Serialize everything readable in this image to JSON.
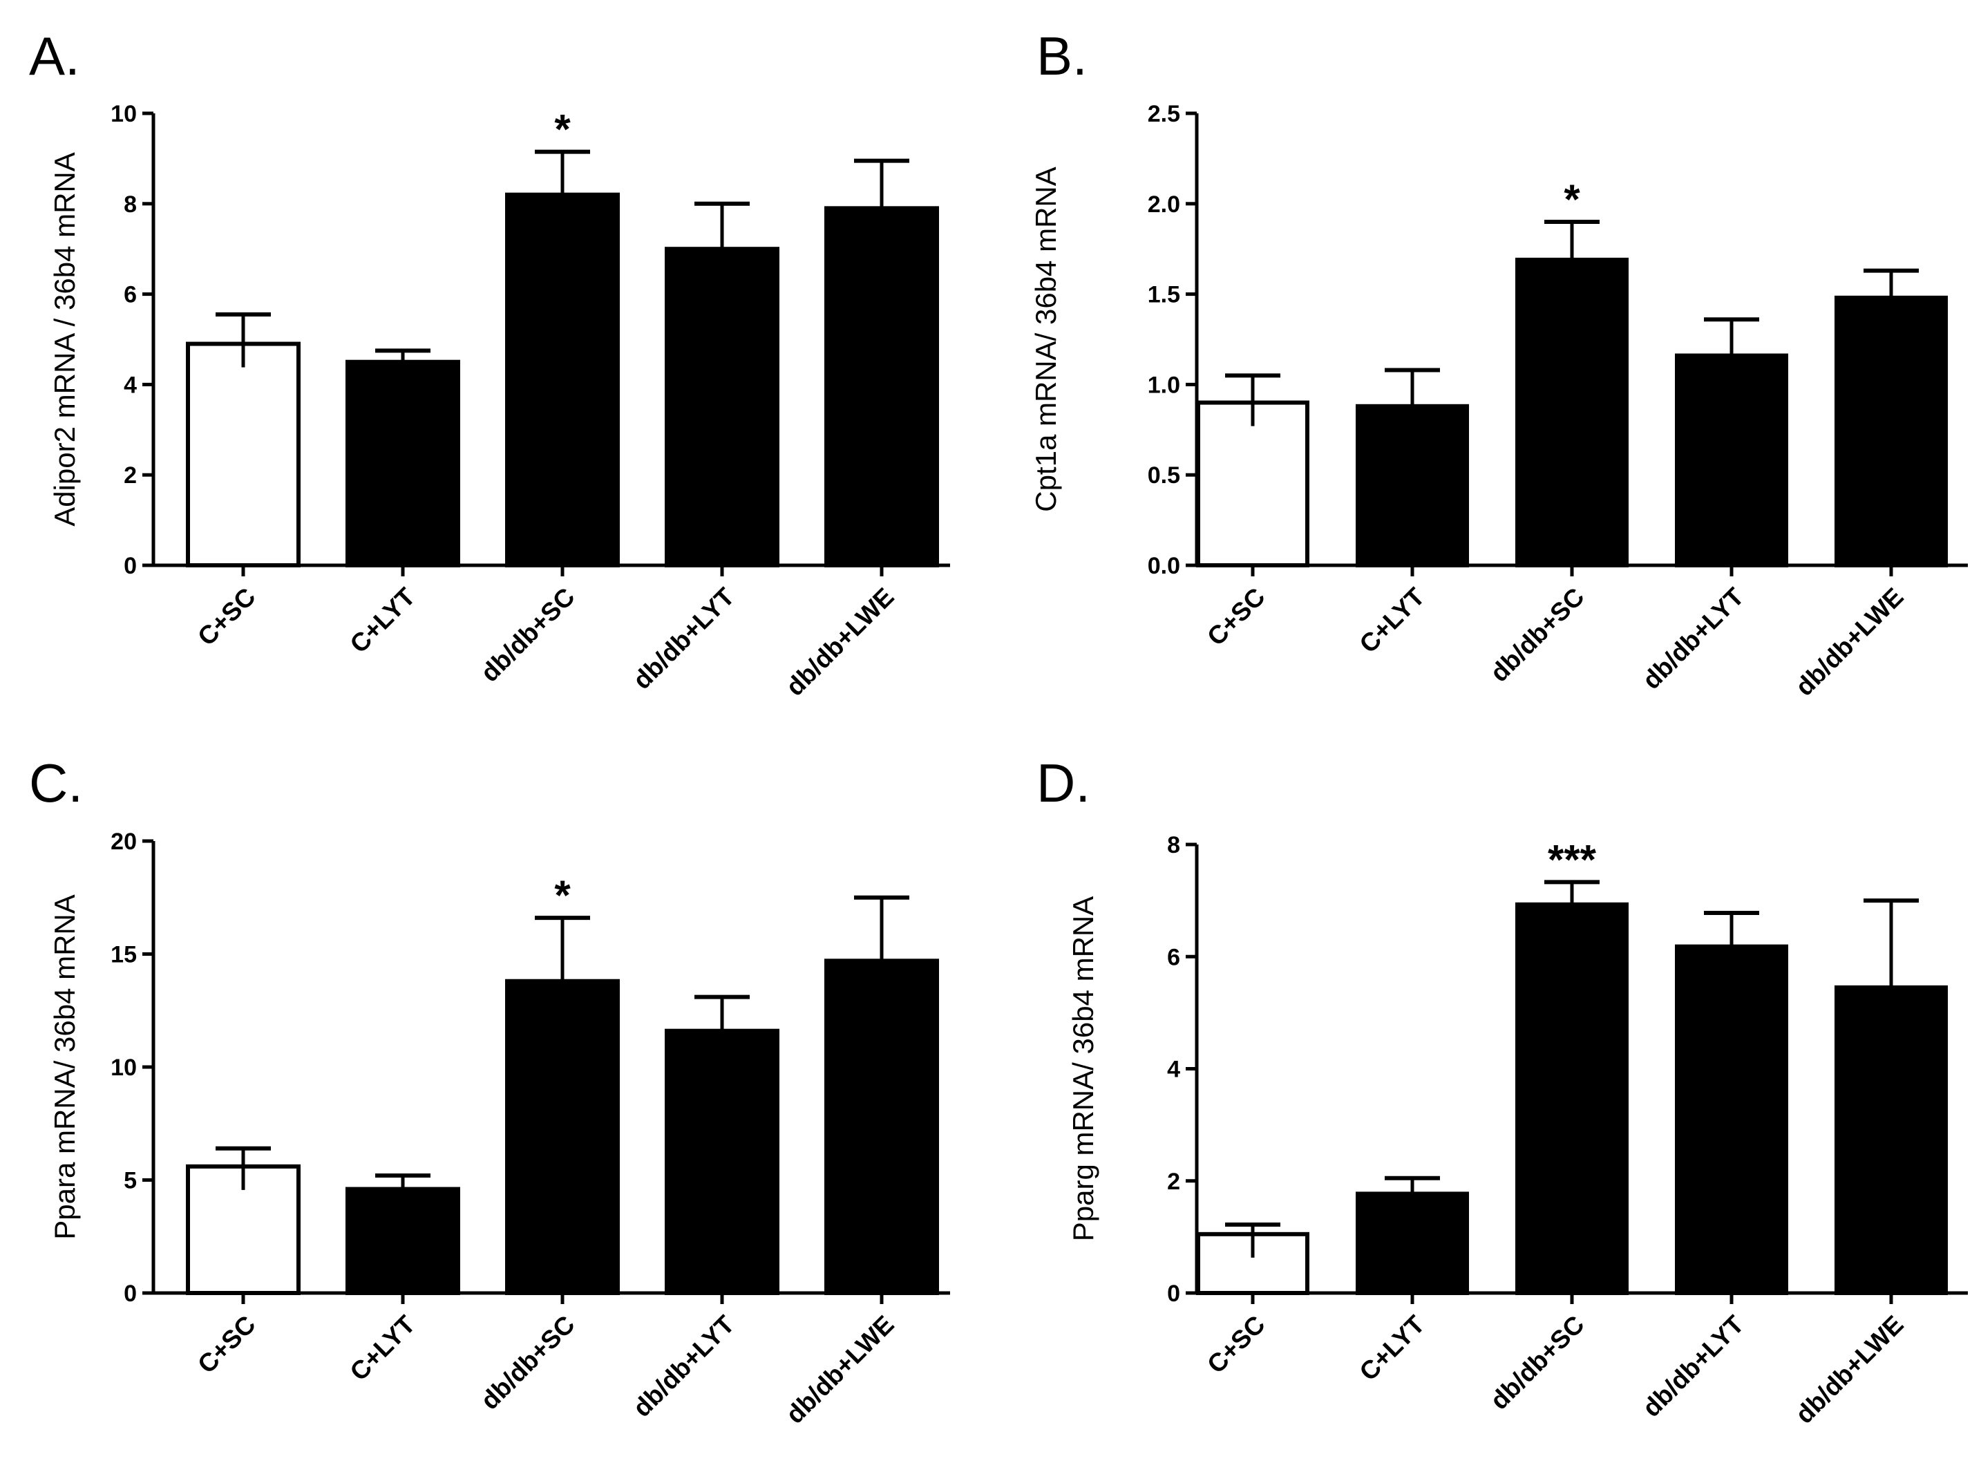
{
  "figure": {
    "colors": {
      "filled_bar": "#000000",
      "control_bar": "#ffffff",
      "axis": "#000000"
    }
  },
  "chart_data": [
    {
      "panel": "A.",
      "type": "bar",
      "ylabel": "Adipor2 mRNA / 36b4 mRNA",
      "ylim": [
        0,
        10
      ],
      "yticks": [
        "0",
        "2",
        "4",
        "6",
        "8",
        "10"
      ],
      "categories": [
        "C+SC",
        "C+LYT",
        "db/db+SC",
        "db/db+LYT",
        "db/db+LWE"
      ],
      "values": [
        4.9,
        4.5,
        8.2,
        7.0,
        7.9
      ],
      "errors": [
        0.65,
        0.25,
        0.95,
        1.0,
        1.05
      ],
      "significance": [
        "",
        "",
        "*",
        "",
        ""
      ]
    },
    {
      "panel": "B.",
      "type": "bar",
      "ylabel": "Cpt1a mRNA/ 36b4 mRNA",
      "ylim": [
        0,
        2.5
      ],
      "yticks": [
        "0.0",
        "0.5",
        "1.0",
        "1.5",
        "2.0",
        "2.5"
      ],
      "categories": [
        "C+SC",
        "C+LYT",
        "db/db+SC",
        "db/db+LYT",
        "db/db+LWE"
      ],
      "values": [
        0.9,
        0.88,
        1.69,
        1.16,
        1.48
      ],
      "errors": [
        0.15,
        0.2,
        0.21,
        0.2,
        0.15
      ],
      "significance": [
        "",
        "",
        "*",
        "",
        ""
      ]
    },
    {
      "panel": "C.",
      "type": "bar",
      "ylabel": "Ppara mRNA/ 36b4 mRNA",
      "ylim": [
        0,
        20
      ],
      "yticks": [
        "0",
        "5",
        "10",
        "15",
        "20"
      ],
      "categories": [
        "C+SC",
        "C+LYT",
        "db/db+SC",
        "db/db+LYT",
        "db/db+LWE"
      ],
      "values": [
        5.6,
        4.6,
        13.8,
        11.6,
        14.7
      ],
      "errors": [
        0.8,
        0.6,
        2.8,
        1.5,
        2.8
      ],
      "significance": [
        "",
        "",
        "*",
        "",
        ""
      ]
    },
    {
      "panel": "D.",
      "type": "bar",
      "ylabel": "Pparg mRNA/ 36b4 mRNA",
      "ylim": [
        0,
        8
      ],
      "yticks": [
        "0",
        "2",
        "4",
        "6",
        "8"
      ],
      "categories": [
        "C+SC",
        "C+LYT",
        "db/db+SC",
        "db/db+LYT",
        "db/db+LWE"
      ],
      "values": [
        1.05,
        1.77,
        6.93,
        6.18,
        5.45
      ],
      "errors": [
        0.17,
        0.28,
        0.4,
        0.6,
        1.55
      ],
      "significance": [
        "",
        "",
        "***",
        "",
        ""
      ]
    }
  ]
}
